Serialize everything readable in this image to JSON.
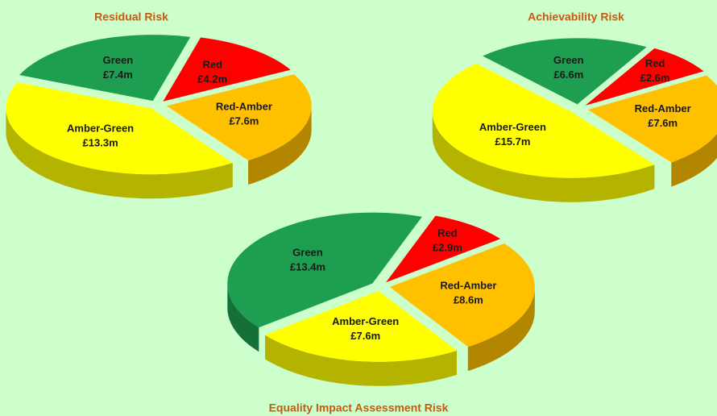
{
  "chart_data": [
    {
      "type": "pie",
      "title": "Residual Risk",
      "categories": [
        "Red",
        "Red-Amber",
        "Amber-Green",
        "Green"
      ],
      "values": [
        4.2,
        7.6,
        13.3,
        7.4
      ],
      "value_labels": [
        "£4.2m",
        "£7.6m",
        "£13.3m",
        "£7.4m"
      ],
      "colors": [
        "#ff0000",
        "#ffc000",
        "#ffff00",
        "#1e9e50"
      ]
    },
    {
      "type": "pie",
      "title": "Achievability Risk",
      "categories": [
        "Red",
        "Red-Amber",
        "Amber-Green",
        "Green"
      ],
      "values": [
        2.6,
        7.6,
        15.7,
        6.6
      ],
      "value_labels": [
        "£2.6m",
        "£7.6m",
        "£15.7m",
        "£6.6m"
      ],
      "colors": [
        "#ff0000",
        "#ffc000",
        "#ffff00",
        "#1e9e50"
      ]
    },
    {
      "type": "pie",
      "title": "Equality Impact Assessment Risk",
      "categories": [
        "Red",
        "Red-Amber",
        "Amber-Green",
        "Green"
      ],
      "values": [
        2.9,
        8.6,
        7.6,
        13.4
      ],
      "value_labels": [
        "£2.9m",
        "£8.6m",
        "£7.6m",
        "£13.4m"
      ],
      "colors": [
        "#ff0000",
        "#ffc000",
        "#ffff00",
        "#1e9e50"
      ]
    }
  ]
}
